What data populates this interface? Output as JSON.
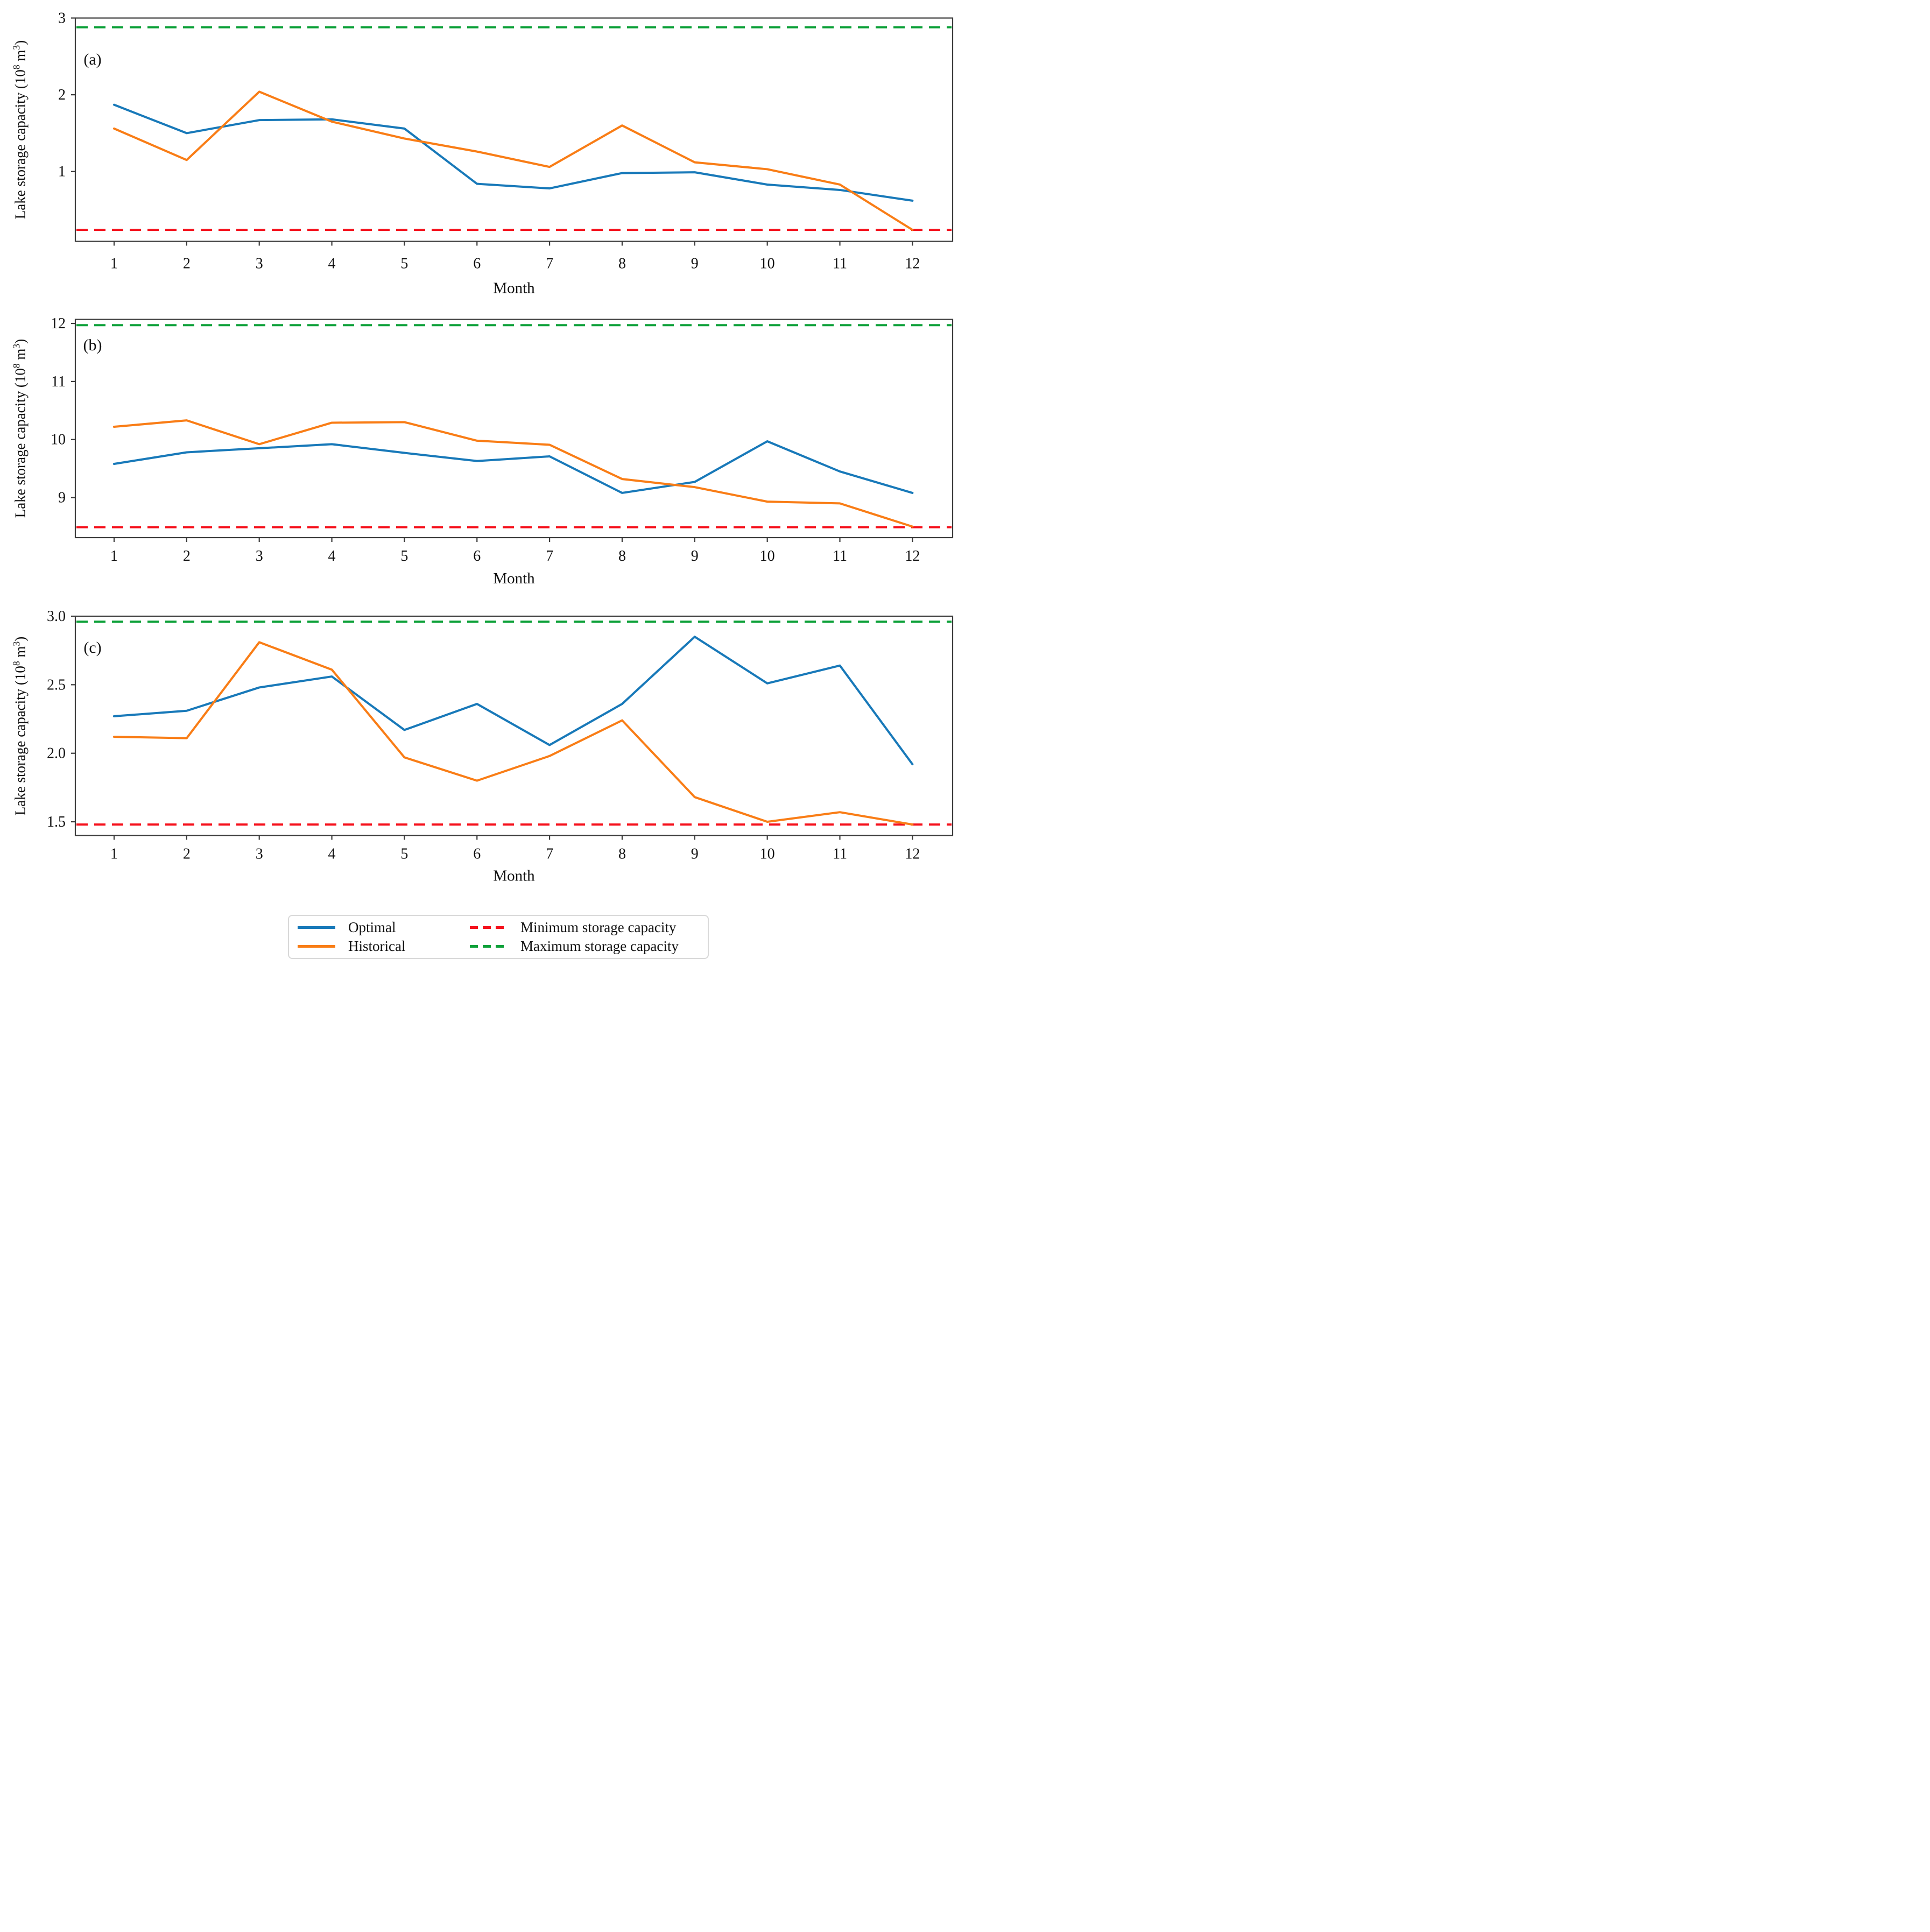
{
  "figure": {
    "y_label_parts": {
      "p1": "Lake storage capacity (10",
      "sup1": "8",
      "p2": " m",
      "sup2": "3",
      "p3": ")"
    },
    "x_axis_label": "Month",
    "accent_colors": {
      "optimal": "#1879b9",
      "historical": "#f97d16",
      "minimum": "#f5121d",
      "maximum": "#0ea13a",
      "spine": "#3c3c3c"
    }
  },
  "legend": {
    "items": [
      {
        "label": "Optimal",
        "color": "#1879b9",
        "dashed": false
      },
      {
        "label": "Minimum storage capacity",
        "color": "#f5121d",
        "dashed": true
      },
      {
        "label": "Historical",
        "color": "#f97d16",
        "dashed": false
      },
      {
        "label": "Maximum storage capacity",
        "color": "#0ea13a",
        "dashed": true
      }
    ]
  },
  "chart_data": [
    {
      "type": "line",
      "panel": "(a)",
      "xlabel": "Month",
      "categories": [
        "1",
        "2",
        "3",
        "4",
        "5",
        "6",
        "7",
        "8",
        "9",
        "10",
        "11",
        "12"
      ],
      "x": [
        1,
        2,
        3,
        4,
        5,
        6,
        7,
        8,
        9,
        10,
        11,
        12
      ],
      "yticks": [
        1,
        2,
        3
      ],
      "ytick_labels": [
        "1",
        "2",
        "3"
      ],
      "ylim": [
        0.09,
        3.0
      ],
      "max_storage_capacity": 2.88,
      "min_storage_capacity": 0.24,
      "series": [
        {
          "name": "Optimal",
          "color": "#1879b9",
          "values": [
            1.87,
            1.5,
            1.67,
            1.68,
            1.56,
            0.84,
            0.78,
            0.98,
            0.99,
            0.83,
            0.76,
            0.62
          ]
        },
        {
          "name": "Historical",
          "color": "#f97d16",
          "values": [
            1.56,
            1.15,
            2.04,
            1.65,
            1.43,
            1.26,
            1.06,
            1.6,
            1.12,
            1.03,
            0.83,
            0.24
          ]
        }
      ]
    },
    {
      "type": "line",
      "panel": "(b)",
      "xlabel": "Month",
      "categories": [
        "1",
        "2",
        "3",
        "4",
        "5",
        "6",
        "7",
        "8",
        "9",
        "10",
        "11",
        "12"
      ],
      "x": [
        1,
        2,
        3,
        4,
        5,
        6,
        7,
        8,
        9,
        10,
        11,
        12
      ],
      "yticks": [
        9,
        10,
        11,
        12
      ],
      "ytick_labels": [
        "9",
        "10",
        "11",
        "12"
      ],
      "ylim": [
        8.31,
        12.07
      ],
      "max_storage_capacity": 11.97,
      "min_storage_capacity": 8.49,
      "series": [
        {
          "name": "Optimal",
          "color": "#1879b9",
          "values": [
            9.58,
            9.78,
            9.85,
            9.92,
            9.77,
            9.63,
            9.71,
            9.08,
            9.27,
            9.97,
            9.45,
            9.08
          ]
        },
        {
          "name": "Historical",
          "color": "#f97d16",
          "values": [
            10.22,
            10.33,
            9.92,
            10.29,
            10.3,
            9.98,
            9.91,
            9.32,
            9.18,
            8.93,
            8.9,
            8.5
          ]
        }
      ]
    },
    {
      "type": "line",
      "panel": "(c)",
      "xlabel": "Month",
      "categories": [
        "1",
        "2",
        "3",
        "4",
        "5",
        "6",
        "7",
        "8",
        "9",
        "10",
        "11",
        "12"
      ],
      "x": [
        1,
        2,
        3,
        4,
        5,
        6,
        7,
        8,
        9,
        10,
        11,
        12
      ],
      "yticks": [
        1.5,
        2.0,
        2.5,
        3.0
      ],
      "ytick_labels": [
        "1.5",
        "2.0",
        "2.5",
        "3.0"
      ],
      "ylim": [
        1.4,
        3.0
      ],
      "max_storage_capacity": 2.96,
      "min_storage_capacity": 1.48,
      "series": [
        {
          "name": "Optimal",
          "color": "#1879b9",
          "values": [
            2.27,
            2.31,
            2.48,
            2.56,
            2.17,
            2.36,
            2.06,
            2.36,
            2.85,
            2.51,
            2.64,
            1.92
          ]
        },
        {
          "name": "Historical",
          "color": "#f97d16",
          "values": [
            2.12,
            2.11,
            2.81,
            2.61,
            1.97,
            1.8,
            1.98,
            2.24,
            1.68,
            1.5,
            1.57,
            1.48
          ]
        }
      ]
    }
  ]
}
